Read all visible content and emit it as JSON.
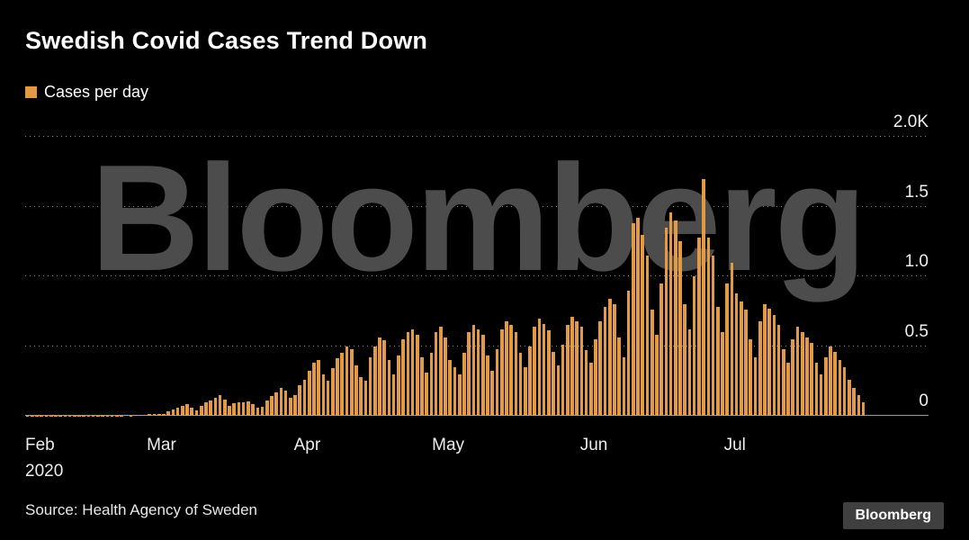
{
  "title": "Swedish Covid Cases Trend Down",
  "legend": {
    "label": "Cases per day",
    "swatch_color": "#E29A45"
  },
  "watermark": "Bloomberg",
  "source": "Source: Health Agency of Sweden",
  "logo": "Bloomberg",
  "chart_data": {
    "type": "bar",
    "title": "Swedish Covid Cases Trend Down",
    "series_name": "Cases per day",
    "bar_color": "#E29A45",
    "ylim": [
      0,
      2000
    ],
    "grid": "dotted-horizontal",
    "legend_position": "top-left",
    "y_ticks": [
      {
        "label": "2.0K",
        "value": 2000
      },
      {
        "label": "1.5",
        "value": 1500
      },
      {
        "label": "1.0",
        "value": 1000
      },
      {
        "label": "0.5",
        "value": 500
      },
      {
        "label": "0",
        "value": 0
      }
    ],
    "months": [
      {
        "label": "Feb",
        "sub": "2020",
        "day": 0
      },
      {
        "label": "Mar",
        "day": 29
      },
      {
        "label": "Apr",
        "day": 60
      },
      {
        "label": "May",
        "day": 90
      },
      {
        "label": "Jun",
        "day": 121
      },
      {
        "label": "Jul",
        "day": 151
      }
    ],
    "total_days": 179,
    "values": [
      2,
      1,
      2,
      1,
      2,
      1,
      1,
      2,
      1,
      2,
      2,
      1,
      2,
      1,
      2,
      2,
      1,
      2,
      3,
      2,
      3,
      4,
      3,
      5,
      6,
      8,
      10,
      12,
      14,
      15,
      30,
      45,
      60,
      70,
      85,
      60,
      40,
      70,
      95,
      110,
      130,
      150,
      115,
      70,
      90,
      100,
      95,
      105,
      85,
      55,
      65,
      110,
      140,
      170,
      200,
      180,
      130,
      150,
      220,
      260,
      320,
      380,
      400,
      300,
      250,
      340,
      410,
      450,
      500,
      480,
      360,
      280,
      250,
      420,
      500,
      560,
      540,
      400,
      300,
      430,
      550,
      600,
      620,
      580,
      420,
      310,
      450,
      600,
      640,
      560,
      400,
      350,
      300,
      450,
      600,
      650,
      620,
      580,
      430,
      320,
      480,
      620,
      680,
      650,
      600,
      450,
      350,
      500,
      640,
      700,
      660,
      610,
      460,
      360,
      510,
      650,
      710,
      680,
      640,
      470,
      380,
      550,
      680,
      780,
      840,
      800,
      560,
      420,
      900,
      1380,
      1420,
      1300,
      1150,
      760,
      580,
      950,
      1350,
      1460,
      1400,
      1250,
      800,
      620,
      1000,
      1280,
      1700,
      1280,
      1150,
      780,
      600,
      950,
      1100,
      880,
      820,
      760,
      550,
      420,
      680,
      800,
      770,
      720,
      650,
      480,
      380,
      550,
      640,
      600,
      560,
      520,
      380,
      300,
      420,
      500,
      460,
      400,
      350,
      260,
      200,
      150,
      100
    ]
  }
}
